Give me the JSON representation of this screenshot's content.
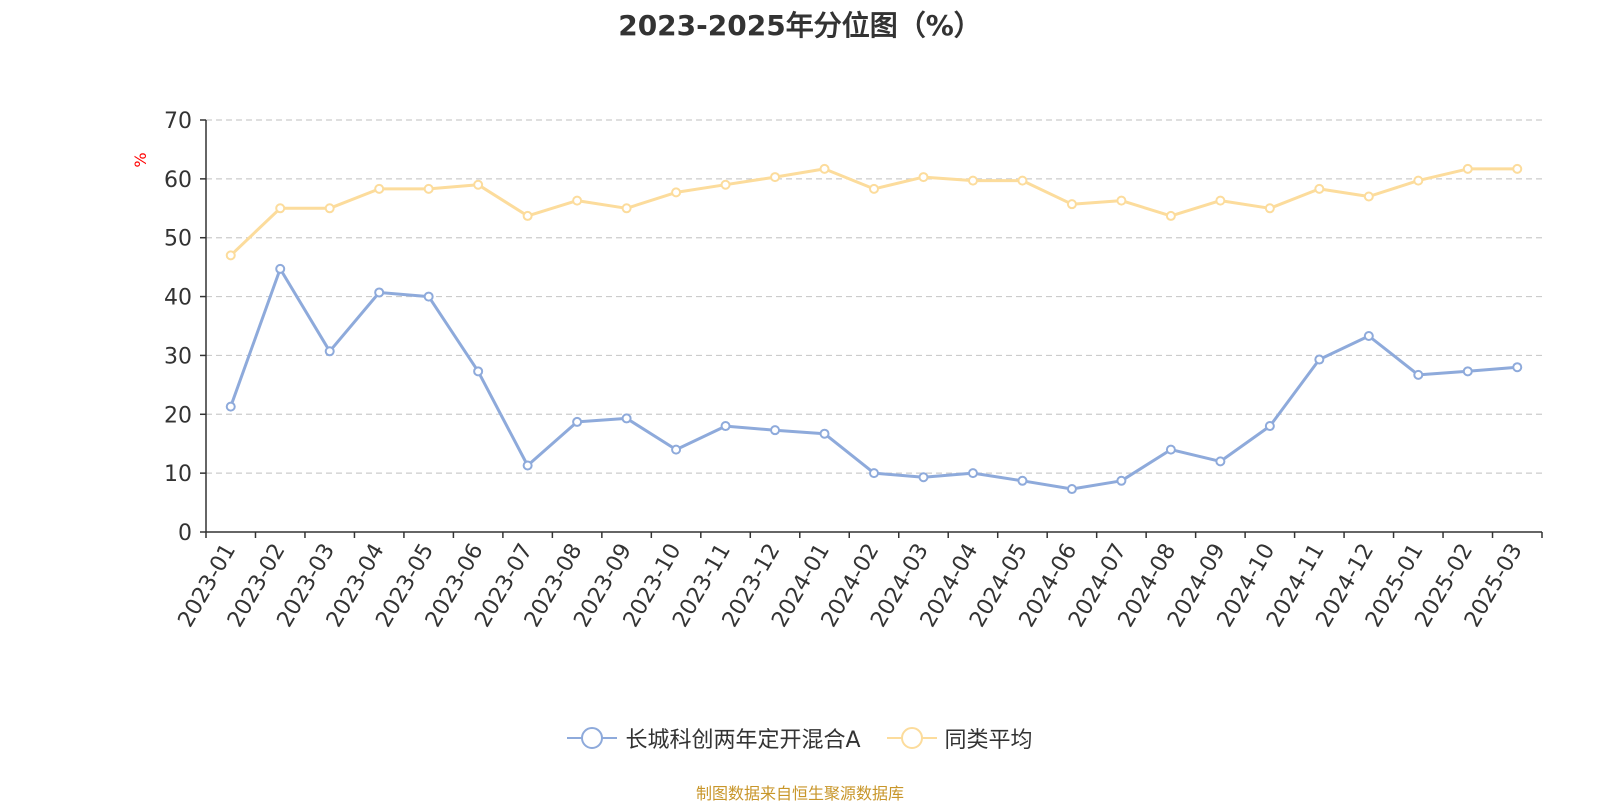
{
  "chart_data": {
    "type": "line",
    "title": "2023-2025年分位图（%）",
    "ylabel": "%",
    "xlabel": "",
    "ylim": [
      0,
      70
    ],
    "yticks": [
      0,
      10,
      20,
      30,
      40,
      50,
      60,
      70
    ],
    "grid": true,
    "legend_position": "bottom-center",
    "categories": [
      "2023-01",
      "2023-02",
      "2023-03",
      "2023-04",
      "2023-05",
      "2023-06",
      "2023-07",
      "2023-08",
      "2023-09",
      "2023-10",
      "2023-11",
      "2023-12",
      "2024-01",
      "2024-02",
      "2024-03",
      "2024-04",
      "2024-05",
      "2024-06",
      "2024-07",
      "2024-08",
      "2024-09",
      "2024-10",
      "2024-11",
      "2024-12",
      "2025-01",
      "2025-02",
      "2025-03"
    ],
    "series": [
      {
        "name": "长城科创两年定开混合A",
        "color": "#8eaadb",
        "values": [
          21.3,
          44.7,
          30.7,
          40.7,
          40.0,
          27.3,
          11.3,
          18.7,
          19.3,
          14.0,
          18.0,
          17.3,
          16.7,
          10.0,
          9.3,
          10.0,
          8.7,
          7.3,
          8.7,
          14.0,
          12.0,
          18.0,
          29.3,
          33.3,
          26.7,
          27.3,
          28.0
        ]
      },
      {
        "name": "同类平均",
        "color": "#fcdc9c",
        "values": [
          47.0,
          55.0,
          55.0,
          58.3,
          58.3,
          59.0,
          53.7,
          56.3,
          55.0,
          57.7,
          59.0,
          60.3,
          61.7,
          58.3,
          60.3,
          59.7,
          59.7,
          55.7,
          56.3,
          53.7,
          56.3,
          55.0,
          58.3,
          57.0,
          59.7,
          61.7,
          61.7
        ]
      }
    ]
  },
  "source_note": "制图数据来自恒生聚源数据库",
  "colors": {
    "axis_label_unit": "#ff0000",
    "axis": "#333333",
    "grid": "#cccccc",
    "source": "#c8962a"
  }
}
